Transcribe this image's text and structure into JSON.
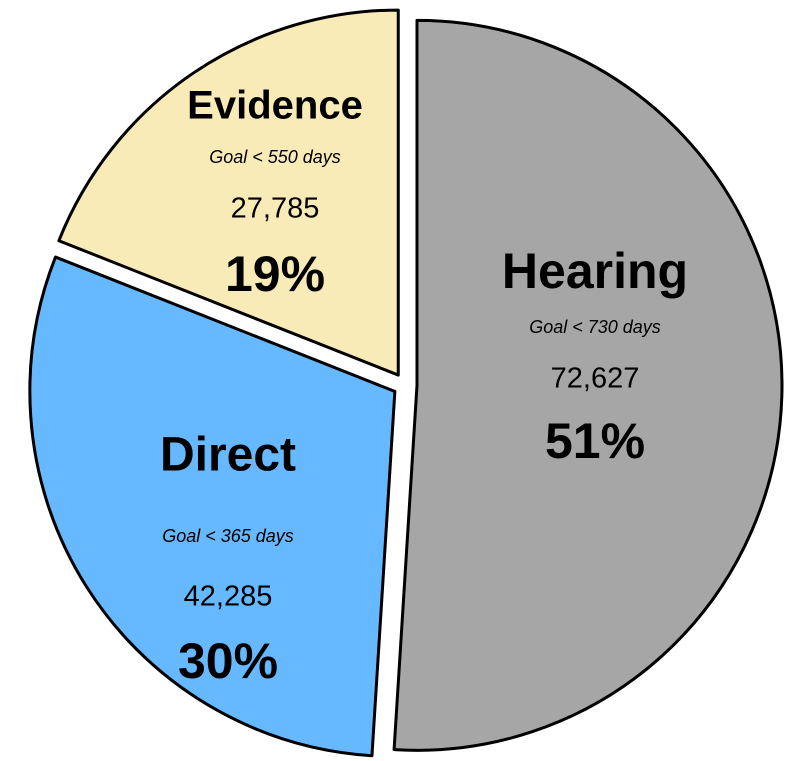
{
  "chart_data": {
    "type": "pie",
    "categories": [
      "Hearing",
      "Direct",
      "Evidence"
    ],
    "values": [
      51,
      30,
      19
    ],
    "value_labels": [
      "51%",
      "30%",
      "19%"
    ],
    "counts": [
      {
        "value": 72627,
        "label": "72,627"
      },
      {
        "value": 42285,
        "label": "42,285"
      },
      {
        "value": 27785,
        "label": "27,785"
      }
    ],
    "goals": [
      "Goal < 730 days",
      "Goal < 365 days",
      "Goal < 550 days"
    ],
    "colors": [
      "#a6a6a6",
      "#66b8ff",
      "#f9ebb7"
    ]
  }
}
